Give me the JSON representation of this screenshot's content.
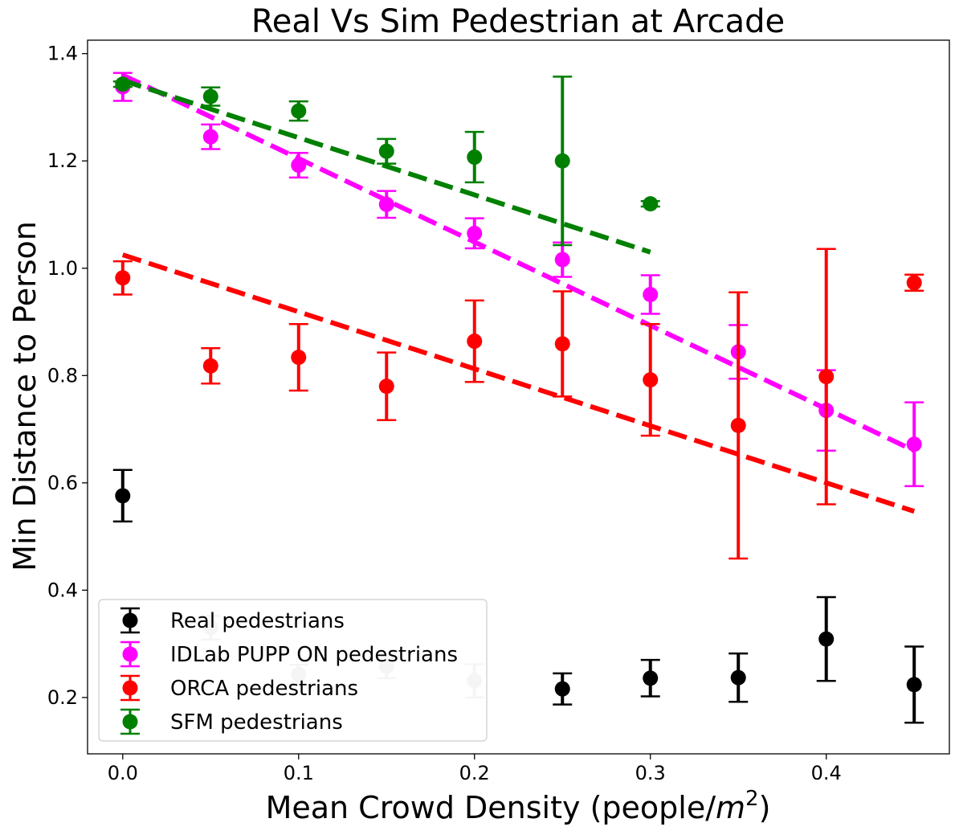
{
  "chart_data": {
    "type": "scatter",
    "title": "Real Vs Sim Pedestrian at Arcade",
    "xlabel_text": "Mean Crowd Density (people/",
    "xlabel_unit_base": "m",
    "xlabel_unit_exp": "2",
    "xlabel_close": ")",
    "ylabel": "Min Distance to Person",
    "xlim": [
      -0.02,
      0.47
    ],
    "ylim": [
      0.095,
      1.425
    ],
    "x_ticks": [
      0.0,
      0.1,
      0.2,
      0.3,
      0.4
    ],
    "x_tick_labels": [
      "0.0",
      "0.1",
      "0.2",
      "0.3",
      "0.4"
    ],
    "y_ticks": [
      0.2,
      0.4,
      0.6,
      0.8,
      1.0,
      1.2,
      1.4
    ],
    "y_tick_labels": [
      "0.2",
      "0.4",
      "0.6",
      "0.8",
      "1.0",
      "1.2",
      "1.4"
    ],
    "grid": false,
    "legend_position": "lower-left",
    "series": [
      {
        "name": "Real pedestrians",
        "color": "#000000",
        "x": [
          0.0,
          0.25,
          0.3,
          0.35,
          0.4,
          0.45
        ],
        "y": [
          0.576,
          0.216,
          0.236,
          0.237,
          0.309,
          0.224
        ],
        "err": [
          0.048,
          0.029,
          0.034,
          0.045,
          0.078,
          0.071
        ]
      },
      {
        "name": "IDLab PUPP ON pedestrians",
        "color": "#ff00ff",
        "x": [
          0.0,
          0.05,
          0.1,
          0.15,
          0.2,
          0.25,
          0.3,
          0.35,
          0.4,
          0.45
        ],
        "y": [
          1.338,
          1.245,
          1.192,
          1.119,
          1.065,
          1.016,
          0.951,
          0.844,
          0.735,
          0.672
        ],
        "err": [
          0.026,
          0.023,
          0.023,
          0.025,
          0.028,
          0.032,
          0.036,
          0.05,
          0.075,
          0.078
        ],
        "trend": [
          1.36,
          0.66
        ]
      },
      {
        "name": "ORCA pedestrians",
        "color": "#ff0000",
        "x": [
          0.0,
          0.05,
          0.1,
          0.15,
          0.2,
          0.25,
          0.3,
          0.35,
          0.4,
          0.45
        ],
        "y": [
          0.982,
          0.818,
          0.834,
          0.78,
          0.864,
          0.859,
          0.792,
          0.707,
          0.798,
          0.973
        ],
        "err": [
          0.031,
          0.033,
          0.062,
          0.063,
          0.076,
          0.098,
          0.104,
          0.248,
          0.238,
          0.015
        ],
        "trend": [
          1.025,
          0.547
        ]
      },
      {
        "name": "SFM pedestrians",
        "color": "#008000",
        "x": [
          0.0,
          0.05,
          0.1,
          0.15,
          0.2,
          0.25,
          0.3
        ],
        "y": [
          1.343,
          1.32,
          1.293,
          1.218,
          1.207,
          1.2,
          1.12
        ],
        "err": [
          0.005,
          0.017,
          0.018,
          0.023,
          0.047,
          0.157,
          0.005
        ],
        "trend": [
          1.35,
          1.03
        ]
      }
    ],
    "faded_points": {
      "color": "#cccccc",
      "x": [
        0.05,
        0.1,
        0.15,
        0.2
      ],
      "y": [
        0.33,
        0.243,
        0.258,
        0.231
      ],
      "err": [
        0.022,
        0.018,
        0.022,
        0.031
      ]
    }
  }
}
